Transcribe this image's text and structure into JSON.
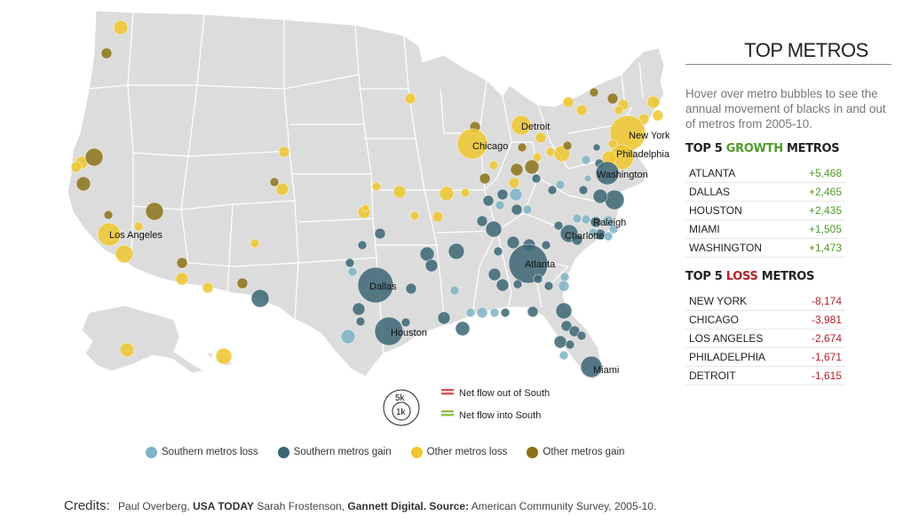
{
  "colors": {
    "land": "#dcdcdc",
    "border": "#ffffff",
    "southern_loss": "#7eb3c6",
    "southern_gain": "#3c6574",
    "other_loss": "#efc72e",
    "other_gain": "#8c7218",
    "flow_out": "#d9534f",
    "flow_in": "#8bc34a"
  },
  "sidebar": {
    "title": "TOP METROS",
    "intro": "Hover over metro bubbles to see the annual movement of blacks in and out of metros from 2005-10.",
    "growth": {
      "head_pre": "TOP 5 ",
      "head_word": "GROWTH",
      "head_post": " METROS",
      "rows": [
        {
          "name": "ATLANTA",
          "value": "+5,468"
        },
        {
          "name": "DALLAS",
          "value": "+2,465"
        },
        {
          "name": "HOUSTON",
          "value": "+2,435"
        },
        {
          "name": "MIAMI",
          "value": "+1,505"
        },
        {
          "name": "WASHINGTON",
          "value": "+1,473"
        }
      ]
    },
    "loss": {
      "head_pre": "TOP 5 ",
      "head_word": "LOSS",
      "head_post": " METROS",
      "rows": [
        {
          "name": "NEW YORK",
          "value": "-8,174"
        },
        {
          "name": "CHICAGO",
          "value": "-3,981"
        },
        {
          "name": "LOS ANGELES",
          "value": "-2,674"
        },
        {
          "name": "PHILADELPHIA",
          "value": "-1,671"
        },
        {
          "name": "DETROIT",
          "value": "-1,615"
        }
      ]
    }
  },
  "map": {
    "city_labels": {
      "detroit": "Detroit",
      "chicago": "Chicago",
      "new_york": "New York",
      "philadelphia": "Philadelphia",
      "washington": "Washington",
      "raleigh": "Raleigh",
      "charlotte": "Charlotte",
      "atlanta": "Atlanta",
      "los_angeles": "Los Angeles",
      "dallas": "Dallas",
      "houston": "Houston",
      "miami": "Miami"
    },
    "scale": {
      "big": "5k",
      "small": "1k"
    },
    "flow_legend": {
      "out": "Net flow out of South",
      "in": "Net flow into South"
    }
  },
  "legend": {
    "southern_loss": "Southern metros loss",
    "southern_gain": "Southern metros gain",
    "other_loss": "Other metros loss",
    "other_gain": "Other metros gain"
  },
  "credits": {
    "label": "Credits:",
    "author1": "Paul Overberg,",
    "org1": "USA TODAY",
    "author2": "Sarah Frostenson,",
    "org2": "Gannett Digital.",
    "source_label": "Source:",
    "source": "American Community Survey, 2005-10."
  }
}
